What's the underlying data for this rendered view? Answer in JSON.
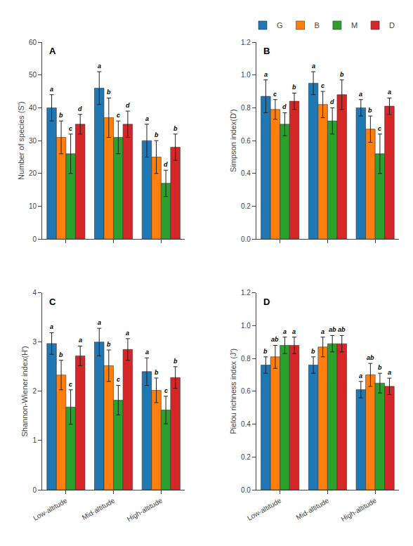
{
  "chart_data": [
    {
      "type": "bar",
      "title": "A",
      "ylabel": "Number of species (S')",
      "categories": [
        "Low-altitude",
        "Mid-altitude",
        "High-altitude"
      ],
      "series": [
        {
          "name": "G",
          "color": "#1f77b4",
          "values": [
            40,
            46,
            30
          ],
          "errors": [
            4,
            5,
            5
          ],
          "labels": [
            "a",
            "a",
            "a"
          ]
        },
        {
          "name": "B",
          "color": "#ff7f0e",
          "values": [
            31,
            37,
            25
          ],
          "errors": [
            5,
            6,
            5
          ],
          "labels": [
            "b",
            "b",
            "b"
          ]
        },
        {
          "name": "M",
          "color": "#2ca02c",
          "values": [
            26,
            31,
            17
          ],
          "errors": [
            6,
            5,
            4
          ],
          "labels": [
            "c",
            "c",
            "d"
          ]
        },
        {
          "name": "D",
          "color": "#d62728",
          "values": [
            35,
            35,
            28
          ],
          "errors": [
            3,
            4,
            4
          ],
          "labels": [
            "d",
            "d",
            "b"
          ]
        }
      ],
      "ylim": [
        0,
        60
      ],
      "yticks": [
        0,
        10,
        20,
        30,
        40,
        50,
        60
      ],
      "grid": false,
      "legend": "upper right",
      "tick_labels": "y"
    },
    {
      "type": "bar",
      "title": "B",
      "ylabel": "Simpson index(D')",
      "categories": [
        "Low-altitude",
        "Mid-altitude",
        "High-altitude"
      ],
      "series": [
        {
          "name": "G",
          "color": "#1f77b4",
          "values": [
            0.87,
            0.95,
            0.8
          ],
          "errors": [
            0.1,
            0.07,
            0.05
          ],
          "labels": [
            "a",
            "a",
            "a"
          ]
        },
        {
          "name": "B",
          "color": "#ff7f0e",
          "values": [
            0.79,
            0.82,
            0.67
          ],
          "errors": [
            0.06,
            0.08,
            0.08
          ],
          "labels": [
            "c",
            "c",
            "b"
          ]
        },
        {
          "name": "M",
          "color": "#2ca02c",
          "values": [
            0.7,
            0.72,
            0.52
          ],
          "errors": [
            0.07,
            0.08,
            0.12
          ],
          "labels": [
            "d",
            "d",
            "c"
          ]
        },
        {
          "name": "D",
          "color": "#d62728",
          "values": [
            0.84,
            0.88,
            0.81
          ],
          "errors": [
            0.05,
            0.09,
            0.05
          ],
          "labels": [
            "b",
            "b",
            "a"
          ]
        }
      ],
      "ylim": [
        0.0,
        1.2
      ],
      "yticks": [
        {
          "value": 0,
          "label": "0.0"
        },
        0.2,
        0.4,
        0.6,
        0.8,
        {
          "value": 1,
          "label": "1.0"
        },
        1.2
      ],
      "grid": false,
      "legend": "upper right",
      "tick_labels": "y"
    },
    {
      "type": "bar",
      "title": "C",
      "ylabel": "Shannon-Wiener index(H')",
      "categories": [
        "Low-altitude",
        "Mid-altitude",
        "High-altitude"
      ],
      "series": [
        {
          "name": "G",
          "color": "#1f77b4",
          "values": [
            2.97,
            3.0,
            2.4
          ],
          "errors": [
            0.22,
            0.28,
            0.28
          ],
          "labels": [
            "a",
            "a",
            "a"
          ]
        },
        {
          "name": "B",
          "color": "#ff7f0e",
          "values": [
            2.33,
            2.52,
            2.02
          ],
          "errors": [
            0.3,
            0.32,
            0.25
          ],
          "labels": [
            "b",
            "b",
            "b"
          ]
        },
        {
          "name": "M",
          "color": "#2ca02c",
          "values": [
            1.68,
            1.82,
            1.62
          ],
          "errors": [
            0.35,
            0.3,
            0.28
          ],
          "labels": [
            "c",
            "c",
            "c"
          ]
        },
        {
          "name": "D",
          "color": "#d62728",
          "values": [
            2.72,
            2.85,
            2.28
          ],
          "errors": [
            0.2,
            0.22,
            0.22
          ],
          "labels": [
            "a",
            "a",
            "b"
          ]
        }
      ],
      "ylim": [
        0,
        4
      ],
      "yticks": [
        0,
        1,
        2,
        3,
        4
      ],
      "grid": false,
      "legend": "upper right"
    },
    {
      "type": "bar",
      "title": "D",
      "ylabel": "Pielou richness index (J')",
      "categories": [
        "Low-altitude",
        "Mid-altitude",
        "High-altitude"
      ],
      "series": [
        {
          "name": "G",
          "color": "#1f77b4",
          "values": [
            0.76,
            0.76,
            0.61
          ],
          "errors": [
            0.05,
            0.05,
            0.05
          ],
          "labels": [
            "b",
            "b",
            "a"
          ]
        },
        {
          "name": "B",
          "color": "#ff7f0e",
          "values": [
            0.81,
            0.87,
            0.7
          ],
          "errors": [
            0.07,
            0.06,
            0.07
          ],
          "labels": [
            "ab",
            "a",
            "ab"
          ]
        },
        {
          "name": "M",
          "color": "#2ca02c",
          "values": [
            0.88,
            0.89,
            0.65
          ],
          "errors": [
            0.05,
            0.05,
            0.06
          ],
          "labels": [
            "a",
            "ab",
            "b"
          ]
        },
        {
          "name": "D",
          "color": "#d62728",
          "values": [
            0.88,
            0.89,
            0.63
          ],
          "errors": [
            0.05,
            0.05,
            0.05
          ],
          "labels": [
            "a",
            "ab",
            "a"
          ]
        }
      ],
      "ylim": [
        0.0,
        1.2
      ],
      "yticks": [
        {
          "value": 0,
          "label": "0.0"
        },
        0.2,
        0.4,
        0.6,
        0.8,
        {
          "value": 1,
          "label": "1.0"
        },
        1.2
      ],
      "grid": false,
      "legend": "upper right"
    }
  ]
}
